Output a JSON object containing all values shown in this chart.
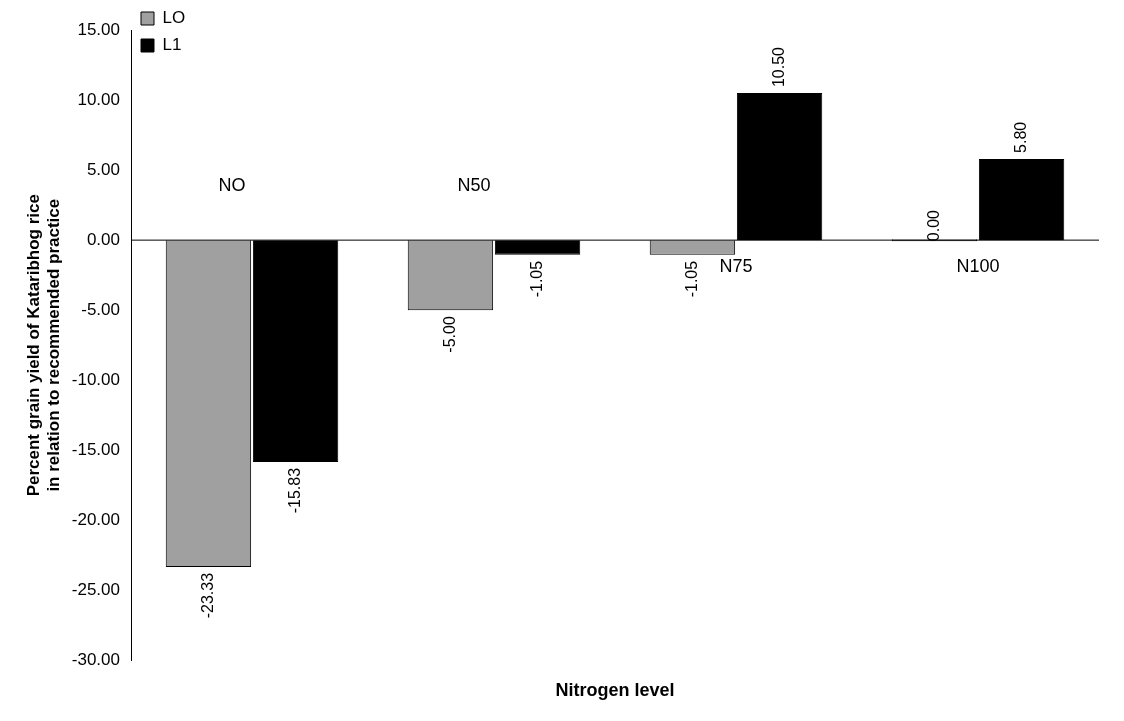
{
  "chart_data": {
    "type": "bar",
    "xlabel": "Nitrogen level",
    "ylabel": "Percent grain yield of Kataribhog rice in relation to recommended practice",
    "categories": [
      "NO",
      "N50",
      "N75",
      "N100"
    ],
    "series": [
      {
        "name": "LO",
        "color": "#a0a0a0",
        "values": [
          -23.33,
          -5.0,
          -1.05,
          0.0
        ],
        "value_labels": [
          "-23.33",
          "-5.00",
          "-1.05",
          "0.00"
        ]
      },
      {
        "name": "L1",
        "color": "#000000",
        "values": [
          -15.83,
          -1.05,
          10.5,
          5.8
        ],
        "value_labels": [
          "-15.83",
          "-1.05",
          "10.50",
          "5.80"
        ]
      }
    ],
    "ylim": [
      -30,
      15
    ],
    "yticks": [
      {
        "value": -30,
        "label": "-30.00"
      },
      {
        "value": -25,
        "label": "-25.00"
      },
      {
        "value": -20,
        "label": "-20.00"
      },
      {
        "value": -15,
        "label": "-15.00"
      },
      {
        "value": -10,
        "label": "-10.00"
      },
      {
        "value": -5,
        "label": "-5.00"
      },
      {
        "value": 0,
        "label": "0.00"
      },
      {
        "value": 5,
        "label": "5.00"
      },
      {
        "value": 10,
        "label": "10.00"
      },
      {
        "value": 15,
        "label": "15.00"
      }
    ],
    "grid": false,
    "legend": "top left"
  }
}
